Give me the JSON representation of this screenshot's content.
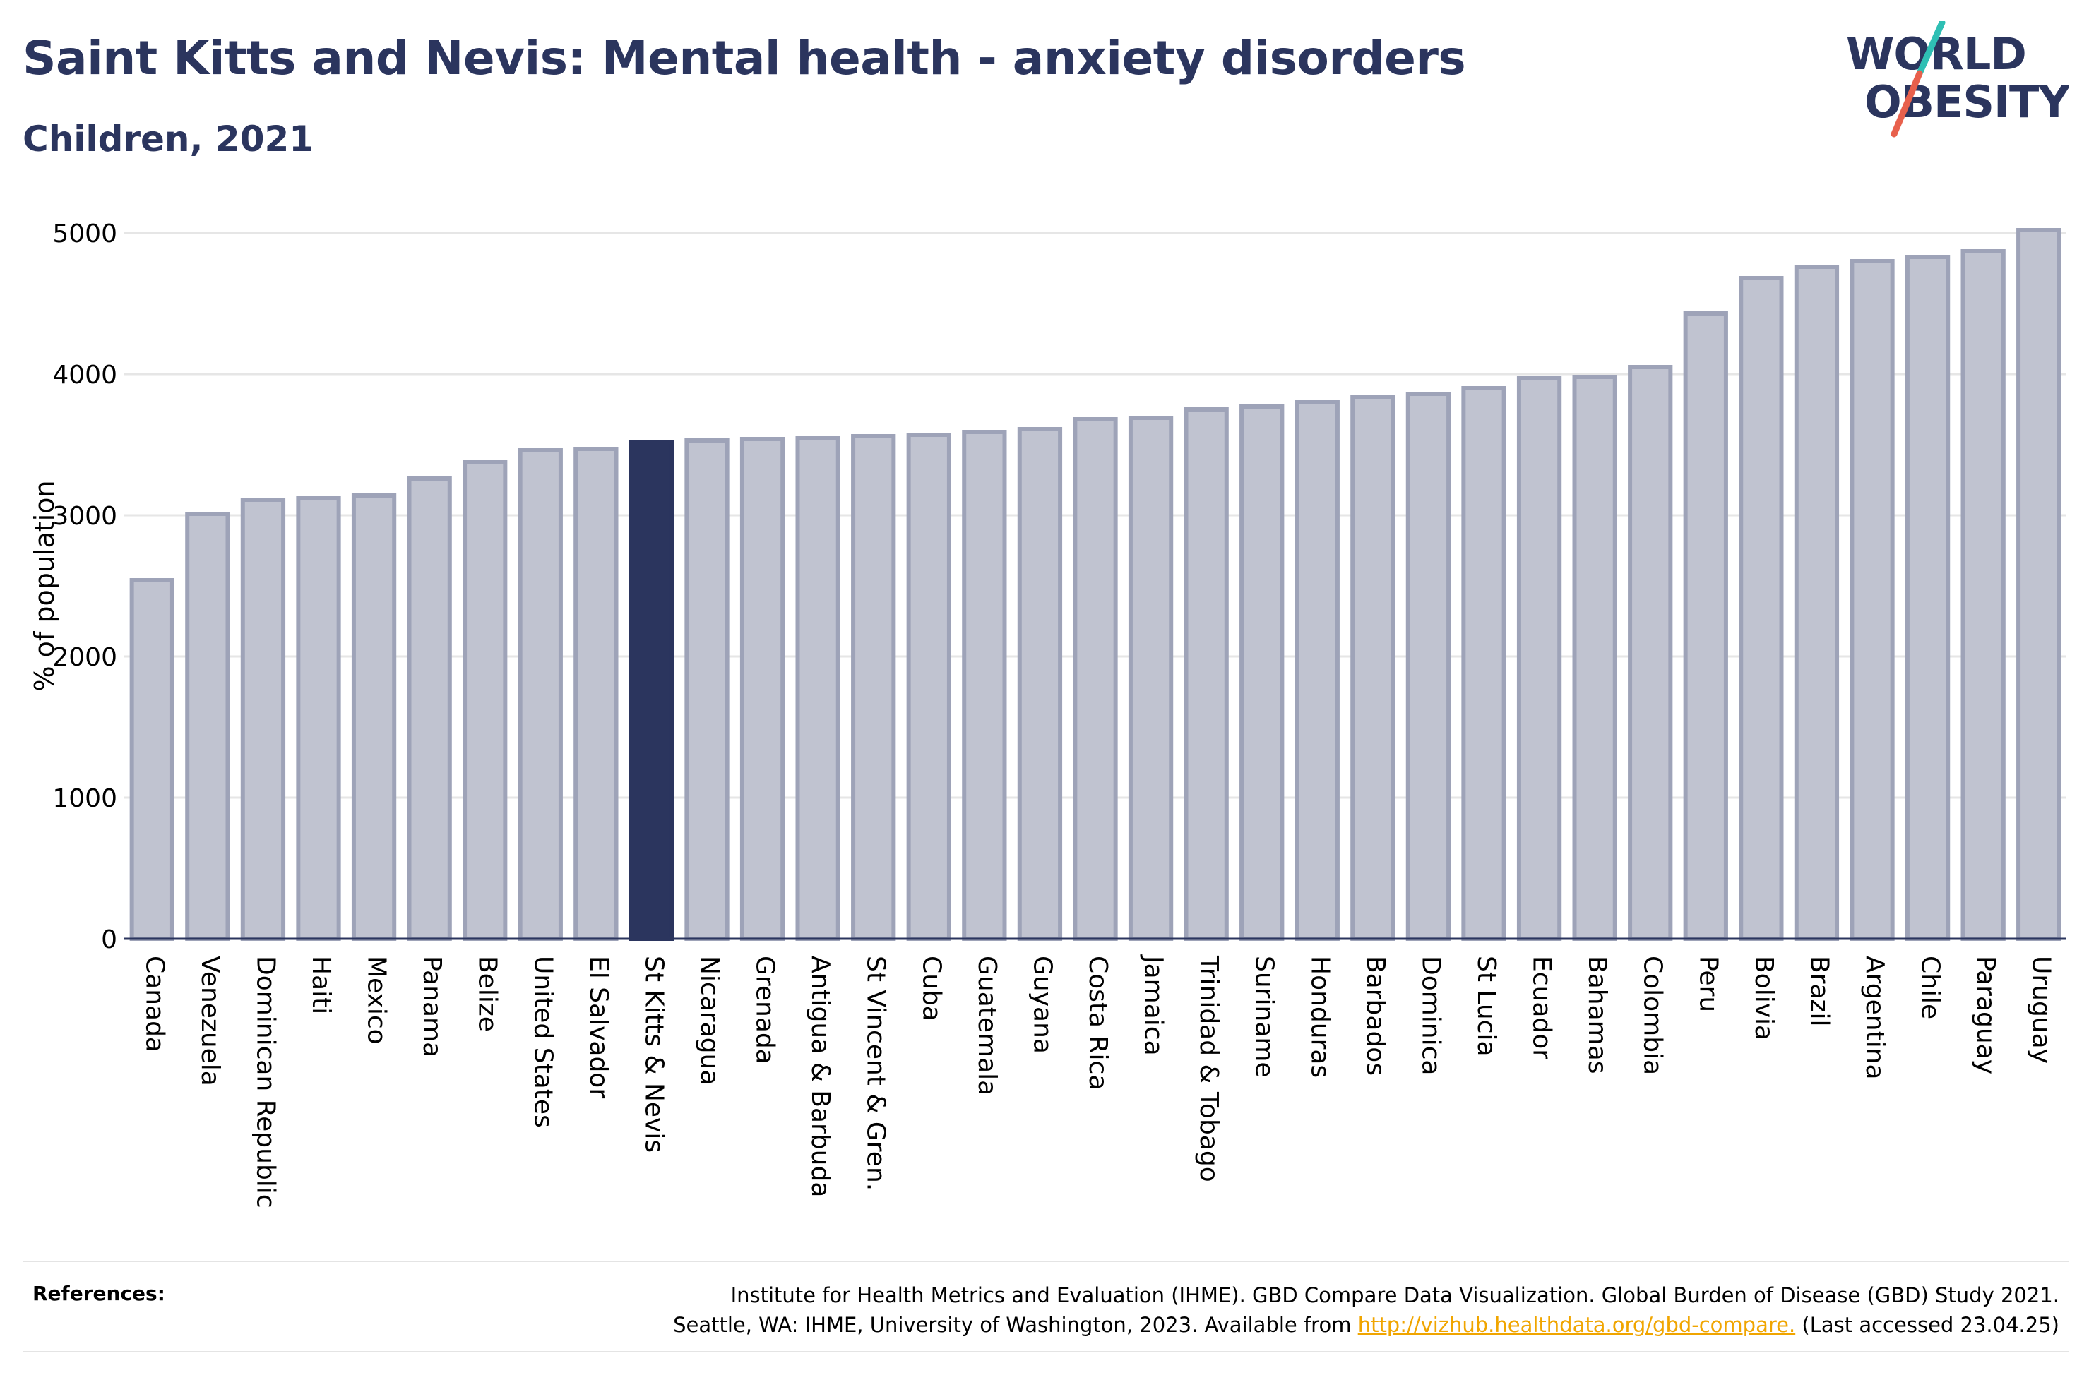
{
  "header": {
    "title": "Saint Kitts and Nevis: Mental health - anxiety disorders",
    "subtitle": "Children, 2021"
  },
  "logo": {
    "line1": "WORLD",
    "line2": "OBESITY",
    "colors": {
      "text": "#2b355e",
      "slash_top": "#2fbfb4",
      "slash_bottom": "#e8604c"
    }
  },
  "chart_data": {
    "type": "bar",
    "title": "Saint Kitts and Nevis: Mental health - anxiety disorders",
    "subtitle": "Children, 2021",
    "ylabel": "% of population",
    "xlabel": "",
    "ylim": [
      0,
      5000
    ],
    "yticks": [
      0,
      1000,
      2000,
      3000,
      4000,
      5000
    ],
    "grid": true,
    "highlight": "St Kitts & Nevis",
    "colors": {
      "bar": "#c0c3d0",
      "bar_border": "#9ea3b8",
      "highlight": "#2b355e",
      "grid": "#e6e6e6"
    },
    "categories": [
      "Canada",
      "Venezuela",
      "Dominican Republic",
      "Haiti",
      "Mexico",
      "Panama",
      "Belize",
      "United States",
      "El Salvador",
      "St Kitts & Nevis",
      "Nicaragua",
      "Grenada",
      "Antigua & Barbuda",
      "St Vincent & Gren.",
      "Cuba",
      "Guatemala",
      "Guyana",
      "Costa Rica",
      "Jamaica",
      "Trinidad & Tobago",
      "Suriname",
      "Honduras",
      "Barbados",
      "Dominica",
      "St Lucia",
      "Ecuador",
      "Bahamas",
      "Colombia",
      "Peru",
      "Bolivia",
      "Brazil",
      "Argentina",
      "Chile",
      "Paraguay",
      "Uruguay"
    ],
    "values": [
      2550,
      3020,
      3120,
      3130,
      3150,
      3270,
      3390,
      3470,
      3480,
      3530,
      3540,
      3550,
      3560,
      3570,
      3580,
      3600,
      3620,
      3690,
      3700,
      3760,
      3780,
      3810,
      3850,
      3870,
      3910,
      3980,
      3990,
      4060,
      4440,
      4690,
      4770,
      4810,
      4840,
      4880,
      5030
    ]
  },
  "references": {
    "label": "References:",
    "line1": "Institute for Health Metrics and Evaluation (IHME). GBD Compare Data Visualization. Global Burden of Disease (GBD) Study 2021.",
    "line2_prefix": "Seattle, WA: IHME, University of Washington, 2023. Available from ",
    "link": "http://vizhub.healthdata.org/gbd-compare.",
    "line2_suffix": " (Last accessed 23.04.25)"
  }
}
